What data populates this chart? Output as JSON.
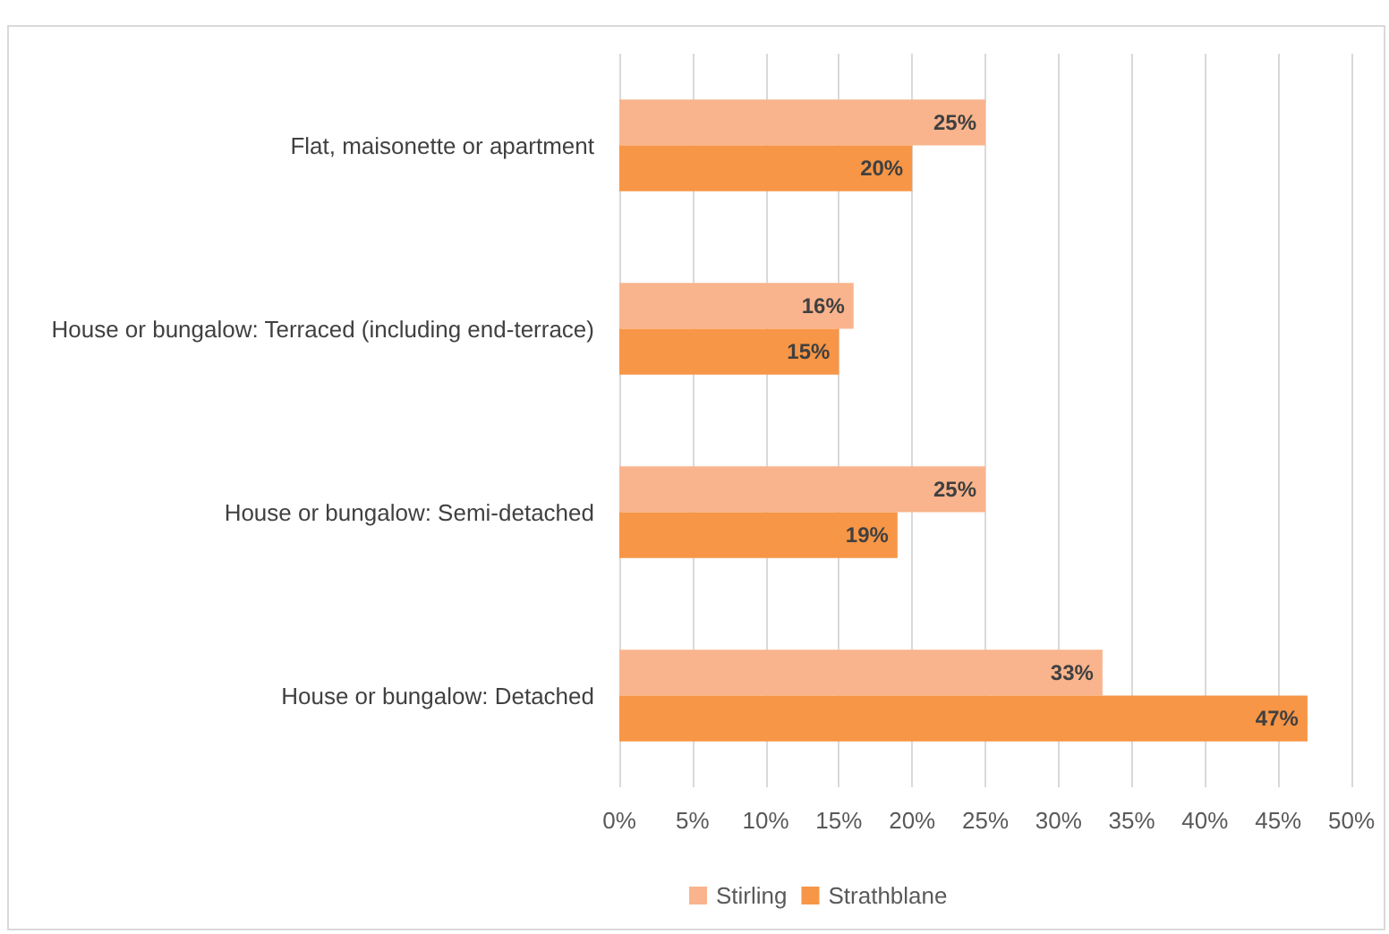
{
  "chart_data": {
    "type": "bar",
    "orientation": "horizontal",
    "categories": [
      "Flat, maisonette or apartment",
      "House or bungalow: Terraced (including end-terrace)",
      "House or bungalow: Semi-detached",
      "House or bungalow: Detached"
    ],
    "series": [
      {
        "name": "Stirling",
        "color": "#f9b48d",
        "values": [
          25,
          16,
          25,
          33
        ],
        "value_labels": [
          "25%",
          "16%",
          "25%",
          "33%"
        ]
      },
      {
        "name": "Strathblane",
        "color": "#f79646",
        "values": [
          20,
          15,
          19,
          47
        ],
        "value_labels": [
          "20%",
          "15%",
          "19%",
          "47%"
        ]
      }
    ],
    "xlim": [
      0,
      50
    ],
    "xticks": [
      {
        "value": 0,
        "label": "0%"
      },
      {
        "value": 5,
        "label": "5%"
      },
      {
        "value": 10,
        "label": "10%"
      },
      {
        "value": 15,
        "label": "15%"
      },
      {
        "value": 20,
        "label": "20%"
      },
      {
        "value": 25,
        "label": "25%"
      },
      {
        "value": 30,
        "label": "30%"
      },
      {
        "value": 35,
        "label": "35%"
      },
      {
        "value": 40,
        "label": "40%"
      },
      {
        "value": 45,
        "label": "45%"
      },
      {
        "value": 50,
        "label": "50%"
      }
    ],
    "grid": "x",
    "legend": "bottom"
  }
}
